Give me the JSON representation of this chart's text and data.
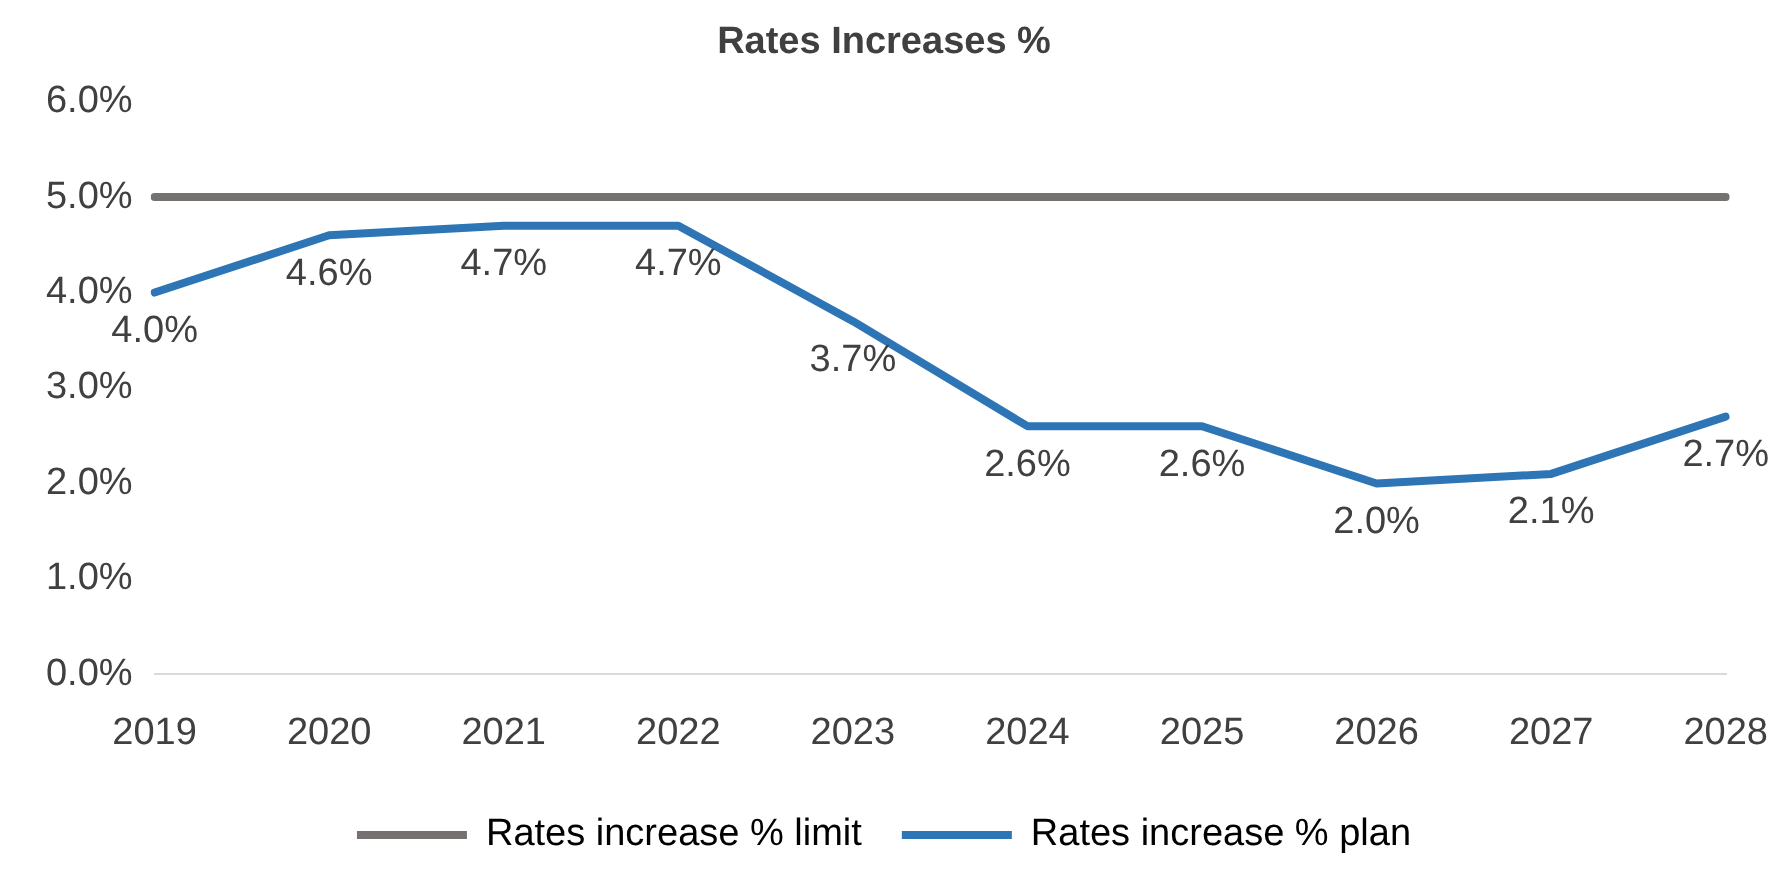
{
  "chart_data": {
    "type": "line",
    "title": "Rates Increases %",
    "categories": [
      "2019",
      "2020",
      "2021",
      "2022",
      "2023",
      "2024",
      "2025",
      "2026",
      "2027",
      "2028"
    ],
    "series": [
      {
        "name": "Rates increase % limit",
        "color": "#767171",
        "values": [
          5.0,
          5.0,
          5.0,
          5.0,
          5.0,
          5.0,
          5.0,
          5.0,
          5.0,
          5.0
        ]
      },
      {
        "name": "Rates increase % plan",
        "color": "#2e75b6",
        "values": [
          4.0,
          4.6,
          4.7,
          4.7,
          3.7,
          2.6,
          2.6,
          2.0,
          2.1,
          2.7
        ],
        "value_labels": [
          "4.0%",
          "4.6%",
          "4.7%",
          "4.7%",
          "3.7%",
          "2.6%",
          "2.6%",
          "2.0%",
          "2.1%",
          "2.7%"
        ]
      }
    ],
    "ylim": [
      0,
      6
    ],
    "yticks": [
      {
        "value": 0,
        "label": "0.0%"
      },
      {
        "value": 1,
        "label": "1.0%"
      },
      {
        "value": 2,
        "label": "2.0%"
      },
      {
        "value": 3,
        "label": "3.0%"
      },
      {
        "value": 4,
        "label": "4.0%"
      },
      {
        "value": 5,
        "label": "5.0%"
      },
      {
        "value": 6,
        "label": "6.0%"
      }
    ],
    "grid": false,
    "legend": "bottom",
    "marker": "none",
    "line_style": "solid"
  }
}
